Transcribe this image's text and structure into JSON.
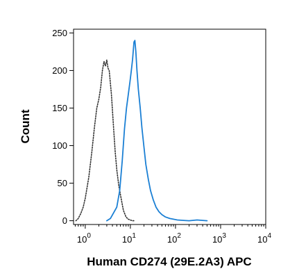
{
  "chart_data": {
    "type": "line",
    "xlabel": "Human CD274 (29E.2A3) APC",
    "ylabel": "Count",
    "x_scale": "log",
    "xlim": [
      0.55,
      10000
    ],
    "ylim": [
      -5,
      255
    ],
    "x_ticks": [
      {
        "value": 1,
        "base": "10",
        "exp": "0"
      },
      {
        "value": 10,
        "base": "10",
        "exp": "1"
      },
      {
        "value": 100,
        "base": "10",
        "exp": "2"
      },
      {
        "value": 1000,
        "base": "10",
        "exp": "3"
      },
      {
        "value": 10000,
        "base": "10",
        "exp": "4"
      }
    ],
    "y_ticks": [
      0,
      50,
      100,
      150,
      200,
      250
    ],
    "series": [
      {
        "style": "dotted",
        "color": "#333333",
        "x": [
          0.62,
          0.7,
          0.8,
          0.9,
          1.0,
          1.2,
          1.4,
          1.6,
          1.8,
          2.0,
          2.2,
          2.4,
          2.6,
          2.8,
          3.0,
          3.2,
          3.4,
          3.6,
          3.8,
          4.0,
          4.3,
          4.6,
          5.0,
          5.5,
          6.0,
          7.0,
          8.0,
          9.0,
          10.0,
          11.0,
          12.0
        ],
        "y": [
          0,
          3,
          10,
          18,
          30,
          58,
          92,
          125,
          150,
          162,
          178,
          200,
          212,
          206,
          214,
          203,
          200,
          183,
          168,
          148,
          118,
          92,
          68,
          48,
          35,
          14,
          5,
          2,
          1,
          0,
          0
        ]
      },
      {
        "style": "solid",
        "color": "#1a7fd4",
        "x": [
          3.0,
          3.6,
          4.2,
          5.0,
          5.8,
          6.6,
          7.4,
          8.2,
          9.0,
          9.8,
          10.5,
          11.2,
          12.0,
          12.6,
          13.2,
          14.0,
          15.0,
          16.5,
          18.0,
          20.0,
          22.0,
          25.0,
          28.0,
          32.0,
          37.0,
          43.0,
          50.0,
          60.0,
          75.0,
          90.0,
          110.0,
          150.0,
          200.0,
          300.0,
          500.0
        ],
        "y": [
          0,
          3,
          10,
          18,
          40,
          80,
          122,
          150,
          168,
          185,
          200,
          215,
          238,
          240,
          225,
          200,
          175,
          150,
          124,
          98,
          75,
          55,
          40,
          28,
          18,
          12,
          8,
          5,
          3,
          2,
          1,
          0.5,
          0,
          1,
          0
        ]
      }
    ]
  }
}
